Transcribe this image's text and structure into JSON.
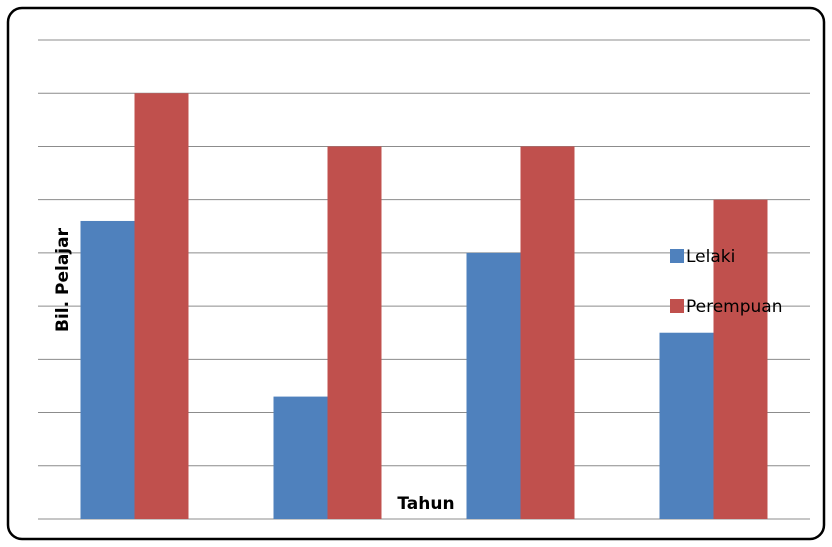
{
  "chart_data": {
    "type": "bar",
    "title": "",
    "xlabel": "Tahun",
    "ylabel": "Bil. Pelajar",
    "categories": [
      "",
      "",
      "",
      ""
    ],
    "series": [
      {
        "name": "Lelaki",
        "color": "#4f81bd",
        "values": [
          5.6,
          2.3,
          5.0,
          3.5
        ]
      },
      {
        "name": "Perempuan",
        "color": "#c0504d",
        "values": [
          8.0,
          7.0,
          7.0,
          6.0
        ]
      }
    ],
    "ylim": [
      0,
      9
    ],
    "y_gridlines": [
      0,
      1,
      2,
      3,
      4,
      5,
      6,
      7,
      8,
      9
    ],
    "tick_labels_shown": false,
    "grid": true,
    "legend": "right"
  }
}
